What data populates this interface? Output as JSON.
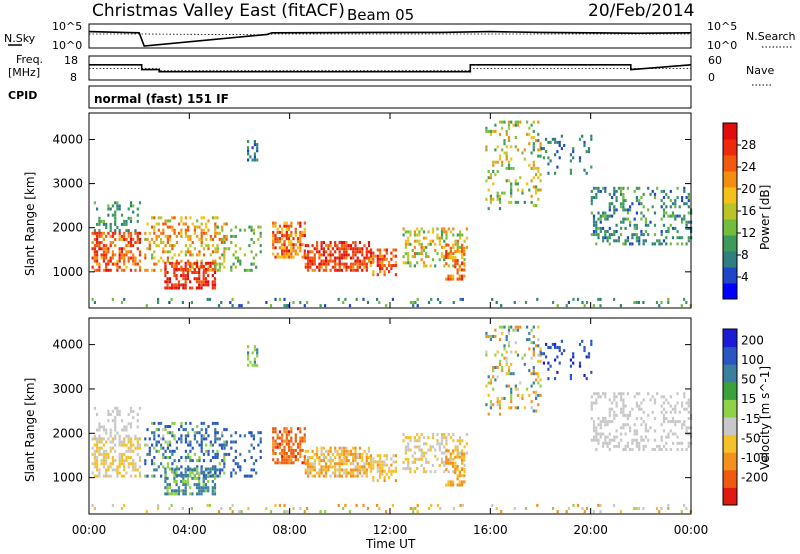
{
  "header": {
    "station": "Christmas Valley East (fitACF)",
    "beam": "Beam 05",
    "date": "20/Feb/2014"
  },
  "colors": {
    "power_scale": [
      "#0000ff",
      "#1e46c8",
      "#2f7f7f",
      "#3c9b5a",
      "#74bd3c",
      "#b9c42a",
      "#f3c11a",
      "#f48e12",
      "#f3580f",
      "#ef2a0c",
      "#e20c0c"
    ],
    "velocity_scale": [
      "#1c1cd6",
      "#2a56c4",
      "#3a7f9c",
      "#3ca03c",
      "#8fd24a",
      "#c8c8c8",
      "#f4c12a",
      "#f49020",
      "#ee5a12",
      "#e01a10"
    ]
  },
  "chart_data": [
    {
      "type": "line",
      "panel": "noise",
      "ylabel_left": "N.Sky",
      "ylabel_right": "N.Search",
      "left_ticks": [
        "10^5",
        "10^0"
      ],
      "right_ticks": [
        "10^5",
        "10^0"
      ],
      "x": [
        0,
        2,
        2.2,
        7.1,
        7.3,
        12,
        14,
        16,
        18,
        20,
        22,
        24
      ],
      "sky": [
        3.6,
        3.3,
        0,
        2.9,
        3.3,
        3.4,
        3.4,
        3.6,
        3.4,
        3.3,
        3.2,
        3.3
      ],
      "search": [
        3.0,
        3.0,
        3.0,
        2.8,
        3.0,
        3.0,
        3.0,
        3.0,
        3.0,
        3.0,
        3.0,
        3.0
      ]
    },
    {
      "type": "line",
      "panel": "frequency",
      "ylabel_left": "Freq.",
      "ylabel_left_unit": "[MHz]",
      "ylabel_right": "Nave",
      "left_ticks": [
        18,
        8
      ],
      "right_ticks": [
        60,
        0
      ],
      "x": [
        0,
        2.1,
        2.1,
        2.8,
        2.8,
        7.2,
        7.2,
        15.2,
        15.2,
        21.6,
        21.6,
        24
      ],
      "freq": [
        15,
        15,
        12,
        12,
        10.7,
        10.7,
        10.7,
        10.7,
        15,
        15,
        12,
        15
      ],
      "nave": [
        28,
        28,
        28,
        28,
        20,
        20,
        20,
        20,
        28,
        28,
        28,
        28
      ]
    },
    {
      "type": "heatmap",
      "panel": "power",
      "cpid_label": "CPID",
      "cpid_text": "normal (fast) 151 IF",
      "ylabel": "Slant Range [km]",
      "yticks": [
        1000,
        2000,
        3000,
        4000
      ],
      "ylim": [
        180,
        4600
      ],
      "cbar_label": "Power [dB]",
      "cbar_ticks": [
        4,
        8,
        12,
        16,
        20,
        24,
        28
      ],
      "cbar_range": [
        0,
        32
      ]
    },
    {
      "type": "heatmap",
      "panel": "velocity",
      "ylabel": "Slant Range [km]",
      "yticks": [
        1000,
        2000,
        3000,
        4000
      ],
      "ylim": [
        180,
        4600
      ],
      "cbar_label": "Velocity [m s^-1]",
      "cbar_ticks": [
        200,
        100,
        50,
        15,
        -15,
        -50,
        -100,
        -200
      ],
      "xlabel": "Time UT",
      "xticks": [
        "00:00",
        "04:00",
        "08:00",
        "12:00",
        "16:00",
        "20:00",
        "00:00"
      ],
      "xlim": [
        0,
        24
      ]
    }
  ]
}
